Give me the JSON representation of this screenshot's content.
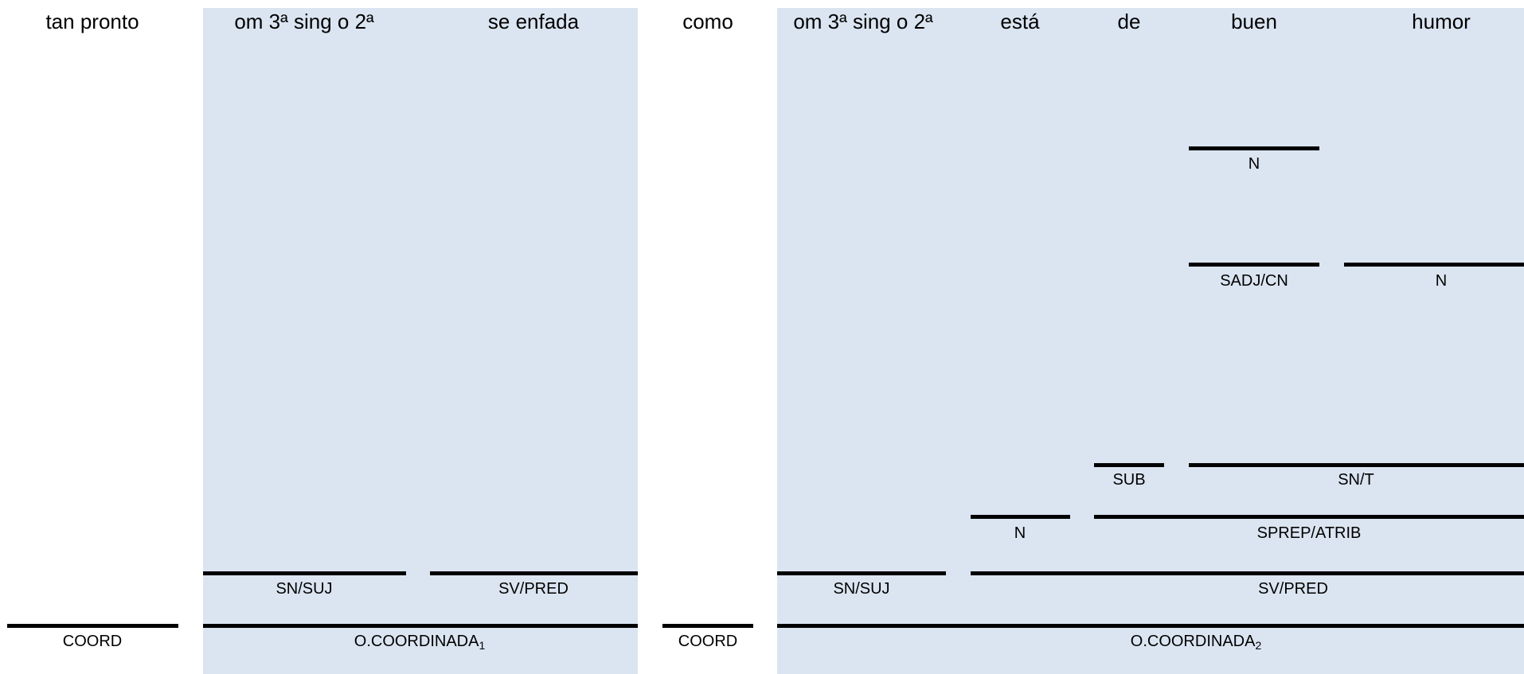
{
  "words": {
    "tan_pronto": "tan pronto",
    "omitted1": "om 3ª sing o 2ª",
    "se_enfada": "se enfada",
    "como": "como",
    "omitted2": "om 3ª sing o 2ª",
    "esta": "está",
    "de": "de",
    "buen": "buen",
    "humor": "humor"
  },
  "labels": {
    "n_buen": "N",
    "sadj_cn": "SADJ/CN",
    "n_humor": "N",
    "sub": "SUB",
    "sn_t": "SN/T",
    "n_esta": "N",
    "sprep_atrib": "SPREP/ATRIB",
    "sn_suj1": "SN/SUJ",
    "sv_pred1": "SV/PRED",
    "sn_suj2": "SN/SUJ",
    "sv_pred2": "SV/PRED",
    "coord1": "COORD",
    "ocoord1": "O.COORDINADA",
    "ocoord1_sub": "1",
    "coord2": "COORD",
    "ocoord2": "O.COORDINADA",
    "ocoord2_sub": "2"
  },
  "colors": {
    "panel": "#dbe5f1",
    "rule": "#000000"
  }
}
